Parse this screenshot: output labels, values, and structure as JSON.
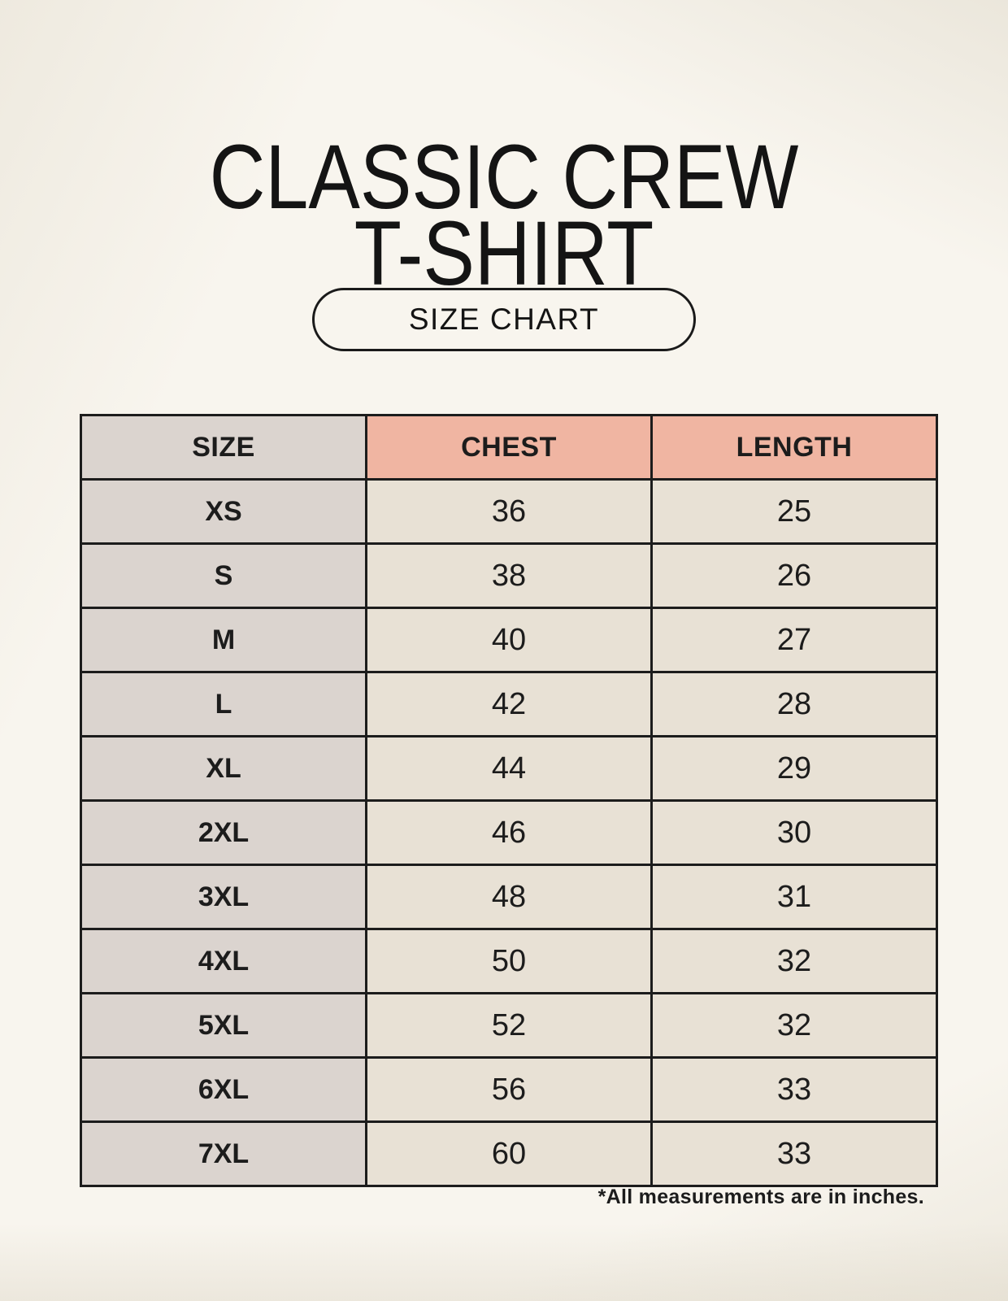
{
  "header": {
    "title_line1": "CLASSIC CREW",
    "title_line2": "T-SHIRT"
  },
  "size_chart_button": {
    "label": "SIZE CHART"
  },
  "footnote": "*All measurements are in inches.",
  "colors": {
    "page_bg": "#f8f5ee",
    "accent_salmon": "#f0b5a2",
    "neutral_gray": "#dbd4cf",
    "cell_cream": "#e8e1d5",
    "border_black": "#1c1c1c"
  },
  "chart_data": {
    "type": "table",
    "title": "CLASSIC CREW T-SHIRT",
    "units": "inches",
    "columns": [
      "SIZE",
      "CHEST",
      "LENGTH"
    ],
    "rows": [
      [
        "XS",
        36,
        25
      ],
      [
        "S",
        38,
        26
      ],
      [
        "M",
        40,
        27
      ],
      [
        "L",
        42,
        28
      ],
      [
        "XL",
        44,
        29
      ],
      [
        "2XL",
        46,
        30
      ],
      [
        "3XL",
        48,
        31
      ],
      [
        "4XL",
        50,
        32
      ],
      [
        "5XL",
        52,
        32
      ],
      [
        "6XL",
        56,
        33
      ],
      [
        "7XL",
        60,
        33
      ]
    ]
  }
}
